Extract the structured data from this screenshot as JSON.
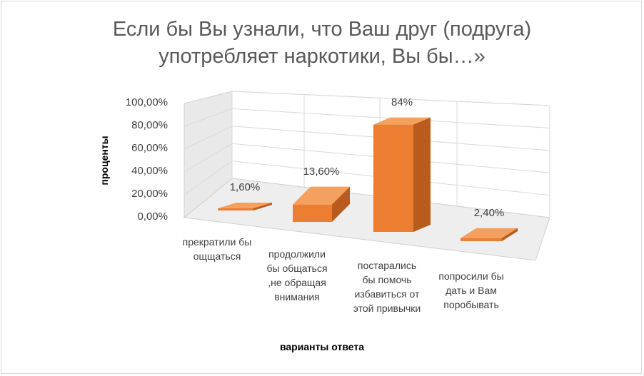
{
  "chart_data": {
    "type": "bar",
    "title_lines": [
      "Если бы Вы узнали, что Ваш друг (подруга)",
      "употребляет наркотики, Вы бы…»"
    ],
    "xlabel": "варианты ответа",
    "ylabel": "проценты",
    "ylim": [
      0,
      100
    ],
    "yticks": [
      "0,00%",
      "20,00%",
      "40,00%",
      "60,00%",
      "80,00%",
      "100,00%"
    ],
    "categories": [
      [
        "прекратили бы",
        "ощщаться"
      ],
      [
        "продолжили",
        "бы общаться",
        ",не обращая",
        "внимания"
      ],
      [
        "постарались",
        "бы помочь",
        "избавиться от",
        "этой привычки"
      ],
      [
        "попросили бы",
        "дать и Вам",
        "поробывать"
      ]
    ],
    "values": [
      1.6,
      13.6,
      84,
      2.4
    ],
    "data_labels": [
      "1,60%",
      "13,60%",
      "84%",
      "2,40%"
    ],
    "bar_color": "#ed7d31",
    "grid": true
  }
}
